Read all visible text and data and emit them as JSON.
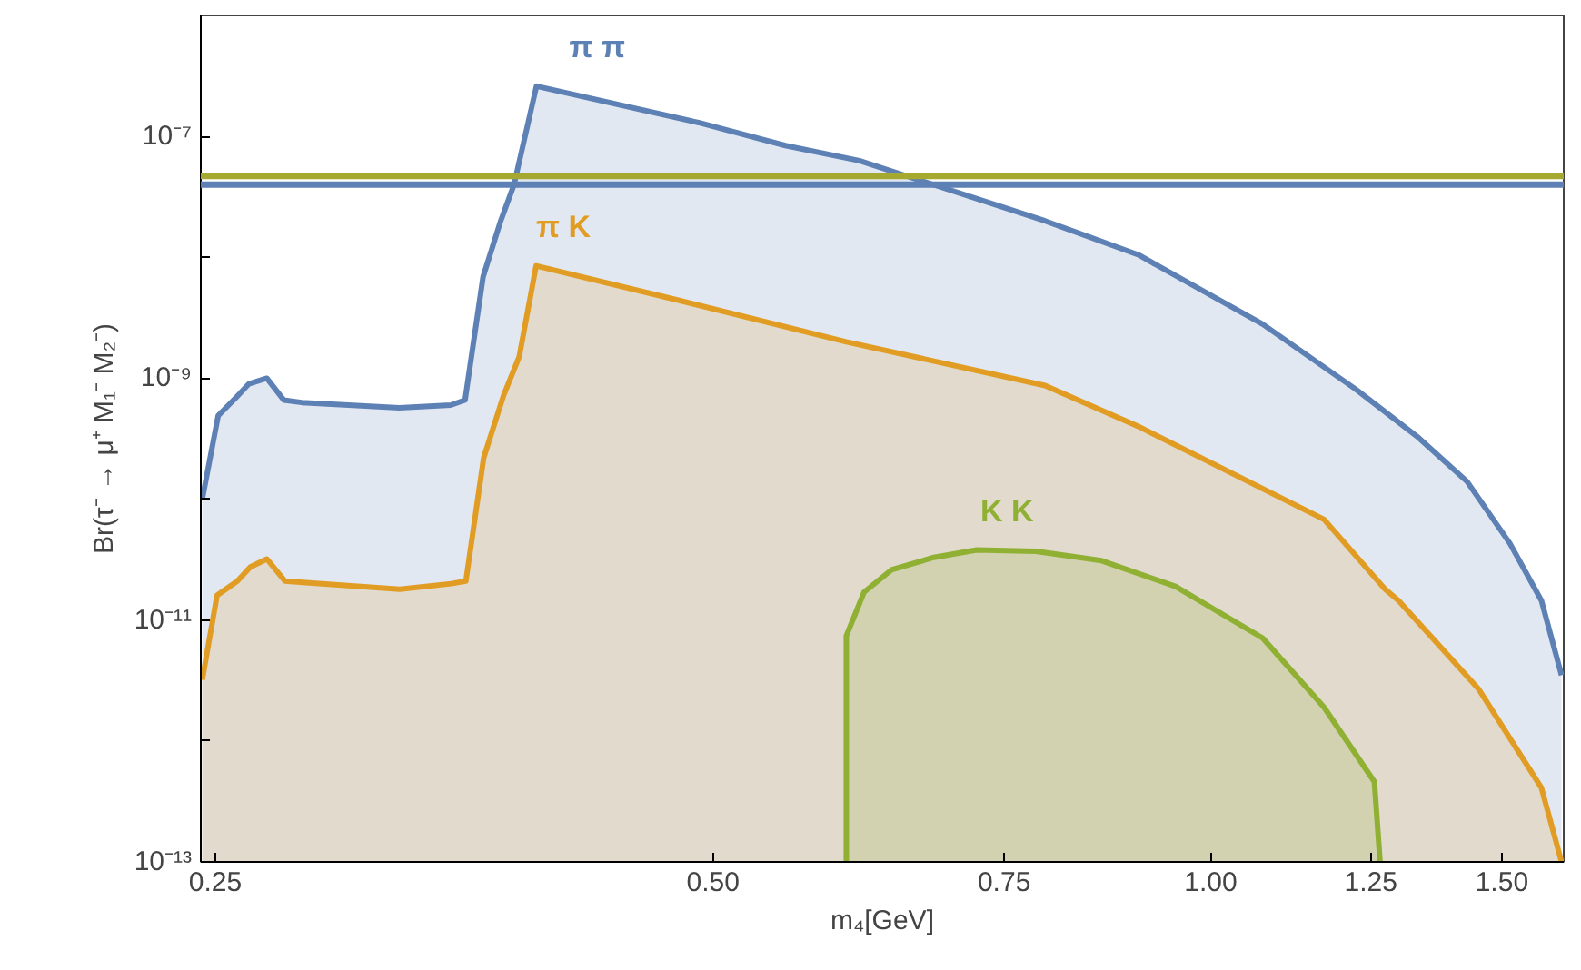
{
  "chart_data": {
    "type": "area",
    "xlabel": "m₄[GeV]",
    "ylabel": "Br(τ⁻ → μ⁺ M₁⁻ M₂⁻)",
    "log": "xy",
    "grid": false,
    "xlim": [
      0.245,
      1.635
    ],
    "ylim": [
      1e-13,
      1e-06
    ],
    "xticks": [
      0.25,
      {
        "value": 0.5,
        "label": "0.50"
      },
      0.75,
      {
        "value": 1.0,
        "label": "1.00"
      },
      1.25,
      {
        "value": 1.5,
        "label": "1.50"
      }
    ],
    "yticks": [
      {
        "value": 1e-13,
        "label": "10⁻¹³"
      },
      {
        "value": 1e-12,
        "label": null
      },
      {
        "value": 1e-11,
        "label": "10⁻¹¹"
      },
      {
        "value": 1e-10,
        "label": null
      },
      {
        "value": 1e-09,
        "label": "10⁻⁹"
      },
      {
        "value": 1e-08,
        "label": null
      },
      {
        "value": 1e-07,
        "label": "10⁻⁷"
      }
    ],
    "series": [
      {
        "name": "π π",
        "color": "#5e81b5",
        "x": [
          0.2455,
          0.251,
          0.2575,
          0.262,
          0.2686,
          0.275,
          0.282,
          0.323,
          0.347,
          0.354,
          0.363,
          0.372,
          0.379,
          0.391,
          0.49,
          0.553,
          0.613,
          0.794,
          0.904,
          1.075,
          1.224,
          1.333,
          1.429,
          1.517,
          1.585,
          1.63
        ],
        "values": [
          1e-10,
          4.9e-10,
          7e-10,
          9e-10,
          1e-09,
          6.6e-10,
          6.3e-10,
          5.7e-10,
          6e-10,
          6.6e-10,
          6.9e-09,
          2e-08,
          4e-08,
          2.6e-07,
          1.3e-07,
          8.4e-08,
          6.3e-08,
          2e-08,
          1.05e-08,
          2.8e-09,
          8.1e-10,
          3.3e-10,
          1.4e-10,
          4.3e-11,
          1.45e-11,
          3.5e-12
        ]
      },
      {
        "name": "π K",
        "color": "#e19c24",
        "x": [
          0.2455,
          0.2506,
          0.2578,
          0.2625,
          0.2686,
          0.2755,
          0.2824,
          0.3232,
          0.3472,
          0.3544,
          0.3633,
          0.3735,
          0.3817,
          0.3908,
          0.477,
          0.602,
          0.794,
          0.904,
          1.171,
          1.275,
          1.299,
          1.452,
          1.585,
          1.63
        ],
        "values": [
          3.2e-12,
          1.6e-11,
          2.1e-11,
          2.75e-11,
          3.2e-11,
          2.1e-11,
          2.05e-11,
          1.8e-11,
          2e-11,
          2.1e-11,
          2.2e-10,
          7.2e-10,
          1.5e-09,
          8.5e-09,
          4.4e-09,
          2e-09,
          8.7e-10,
          4e-10,
          6.8e-11,
          1.8e-11,
          1.45e-11,
          2.7e-12,
          4.1e-13,
          1e-13
        ]
      },
      {
        "name": "K K",
        "color": "#8fb032",
        "x": [
          0.602,
          0.602,
          0.617,
          0.641,
          0.68,
          0.722,
          0.784,
          0.859,
          0.952,
          1.075,
          1.171,
          1.256,
          1.266
        ],
        "values": [
          1e-13,
          7.4e-12,
          1.7e-11,
          2.6e-11,
          3.3e-11,
          3.8e-11,
          3.7e-11,
          3.1e-11,
          1.9e-11,
          7.1e-12,
          1.9e-12,
          4.6e-13,
          1e-13
        ]
      }
    ],
    "ref_lines": [
      {
        "axis": "y",
        "value": 4.7e-08,
        "color": "#a5a92f"
      },
      {
        "axis": "y",
        "value": 4e-08,
        "color": "#5e81b5"
      }
    ]
  }
}
